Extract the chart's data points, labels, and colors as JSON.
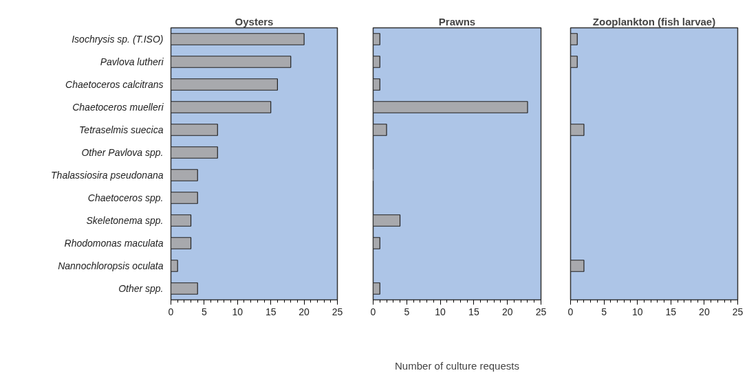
{
  "chart_data": [
    {
      "type": "bar",
      "orientation": "horizontal",
      "title": "Oysters",
      "categories": [
        "Isochrysis sp. (T.ISO)",
        "Pavlova lutheri",
        "Chaetoceros calcitrans",
        "Chaetoceros muelleri",
        "Tetraselmis suecica",
        "Other Pavlova spp.",
        "Thalassiosira pseudonana",
        "Chaetoceros spp.",
        "Skeletonema spp.",
        "Rhodomonas maculata",
        "Nannochloropsis oculata",
        "Other spp."
      ],
      "values": [
        20,
        18,
        16,
        15,
        7,
        7,
        4,
        4,
        3,
        3,
        1,
        4
      ],
      "color": "#a8a9ad",
      "xlim": [
        0,
        25
      ],
      "xticks": [
        0,
        {
          "value": 1,
          "label": null
        },
        {
          "value": 2,
          "label": null
        },
        {
          "value": 3,
          "label": null
        },
        {
          "value": 4,
          "label": null
        },
        5,
        {
          "value": 6,
          "label": null
        },
        {
          "value": 7,
          "label": null
        },
        {
          "value": 8,
          "label": null
        },
        {
          "value": 9,
          "label": null
        },
        10,
        {
          "value": 11,
          "label": null
        },
        {
          "value": 12,
          "label": null
        },
        {
          "value": 13,
          "label": null
        },
        {
          "value": 14,
          "label": null
        },
        15,
        {
          "value": 16,
          "label": null
        },
        {
          "value": 17,
          "label": null
        },
        {
          "value": 18,
          "label": null
        },
        {
          "value": 19,
          "label": null
        },
        20,
        {
          "value": 21,
          "label": null
        },
        {
          "value": 22,
          "label": null
        },
        {
          "value": 23,
          "label": null
        },
        {
          "value": 24,
          "label": null
        },
        25
      ]
    },
    {
      "type": "bar",
      "orientation": "horizontal",
      "title": "Prawns",
      "xlabel": "Number of culture requests",
      "tick_labels": "x",
      "categories": [
        null,
        null,
        null,
        null,
        null,
        null,
        null,
        null,
        null,
        null,
        null,
        null
      ],
      "values": [
        1,
        1,
        1,
        23,
        2,
        null,
        0,
        null,
        4,
        1,
        null,
        1
      ],
      "color": "#a8a9ad",
      "xlim": [
        0,
        25
      ],
      "xticks": [
        0,
        {
          "value": 1,
          "label": null
        },
        {
          "value": 2,
          "label": null
        },
        {
          "value": 3,
          "label": null
        },
        {
          "value": 4,
          "label": null
        },
        5,
        {
          "value": 6,
          "label": null
        },
        {
          "value": 7,
          "label": null
        },
        {
          "value": 8,
          "label": null
        },
        {
          "value": 9,
          "label": null
        },
        10,
        {
          "value": 11,
          "label": null
        },
        {
          "value": 12,
          "label": null
        },
        {
          "value": 13,
          "label": null
        },
        {
          "value": 14,
          "label": null
        },
        15,
        {
          "value": 16,
          "label": null
        },
        {
          "value": 17,
          "label": null
        },
        {
          "value": 18,
          "label": null
        },
        {
          "value": 19,
          "label": null
        },
        20,
        {
          "value": 21,
          "label": null
        },
        {
          "value": 22,
          "label": null
        },
        {
          "value": 23,
          "label": null
        },
        {
          "value": 24,
          "label": null
        },
        25
      ]
    },
    {
      "type": "bar",
      "orientation": "horizontal",
      "title": "Zooplankton (fish larvae)",
      "tick_labels": "x",
      "categories": [
        null,
        null,
        null,
        null,
        null,
        null,
        null,
        null,
        null,
        null,
        null,
        null
      ],
      "values": [
        1,
        1,
        null,
        null,
        2,
        null,
        null,
        null,
        null,
        null,
        2,
        null
      ],
      "color": "#a8a9ad",
      "xlim": [
        0,
        25
      ],
      "xticks": [
        0,
        {
          "value": 1,
          "label": null
        },
        {
          "value": 2,
          "label": null
        },
        {
          "value": 3,
          "label": null
        },
        {
          "value": 4,
          "label": null
        },
        5,
        {
          "value": 6,
          "label": null
        },
        {
          "value": 7,
          "label": null
        },
        {
          "value": 8,
          "label": null
        },
        {
          "value": 9,
          "label": null
        },
        10,
        {
          "value": 11,
          "label": null
        },
        {
          "value": 12,
          "label": null
        },
        {
          "value": 13,
          "label": null
        },
        {
          "value": 14,
          "label": null
        },
        15,
        {
          "value": 16,
          "label": null
        },
        {
          "value": 17,
          "label": null
        },
        {
          "value": 18,
          "label": null
        },
        {
          "value": 19,
          "label": null
        },
        20,
        {
          "value": 21,
          "label": null
        },
        {
          "value": 22,
          "label": null
        },
        {
          "value": 23,
          "label": null
        },
        {
          "value": 24,
          "label": null
        },
        25
      ]
    }
  ]
}
